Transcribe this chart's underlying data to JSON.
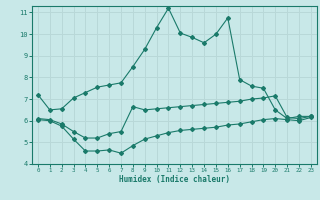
{
  "title": "",
  "xlabel": "Humidex (Indice chaleur)",
  "bg_color": "#c8e8e8",
  "grid_color": "#b8d8d8",
  "line_color": "#1a7a6a",
  "xlim": [
    -0.5,
    23.5
  ],
  "ylim": [
    4,
    11.3
  ],
  "xticks": [
    0,
    1,
    2,
    3,
    4,
    5,
    6,
    7,
    8,
    9,
    10,
    11,
    12,
    13,
    14,
    15,
    16,
    17,
    18,
    19,
    20,
    21,
    22,
    23
  ],
  "yticks": [
    4,
    5,
    6,
    7,
    8,
    9,
    10,
    11
  ],
  "line1_x": [
    0,
    1,
    2,
    3,
    4,
    5,
    6,
    7,
    8,
    9,
    10,
    11,
    12,
    13,
    14,
    15,
    16,
    17,
    18,
    19,
    20,
    21,
    22,
    23
  ],
  "line1_y": [
    7.2,
    6.5,
    6.55,
    7.05,
    7.3,
    7.55,
    7.65,
    7.75,
    8.5,
    9.3,
    10.3,
    11.2,
    10.05,
    9.85,
    9.6,
    10.0,
    10.75,
    7.9,
    7.6,
    7.5,
    6.5,
    6.1,
    6.2,
    6.2
  ],
  "line2_x": [
    0,
    1,
    2,
    3,
    4,
    5,
    6,
    7,
    8,
    9,
    10,
    11,
    12,
    13,
    14,
    15,
    16,
    17,
    18,
    19,
    20,
    21,
    22,
    23
  ],
  "line2_y": [
    6.1,
    6.05,
    5.85,
    5.5,
    5.2,
    5.2,
    5.4,
    5.5,
    6.65,
    6.5,
    6.55,
    6.6,
    6.65,
    6.7,
    6.75,
    6.8,
    6.85,
    6.9,
    7.0,
    7.05,
    7.15,
    6.15,
    6.1,
    6.2
  ],
  "line3_x": [
    0,
    1,
    2,
    3,
    4,
    5,
    6,
    7,
    8,
    9,
    10,
    11,
    12,
    13,
    14,
    15,
    16,
    17,
    18,
    19,
    20,
    21,
    22,
    23
  ],
  "line3_y": [
    6.05,
    6.0,
    5.75,
    5.15,
    4.6,
    4.6,
    4.65,
    4.5,
    4.85,
    5.15,
    5.3,
    5.45,
    5.55,
    5.6,
    5.65,
    5.7,
    5.8,
    5.85,
    5.95,
    6.05,
    6.1,
    6.05,
    6.0,
    6.15
  ]
}
